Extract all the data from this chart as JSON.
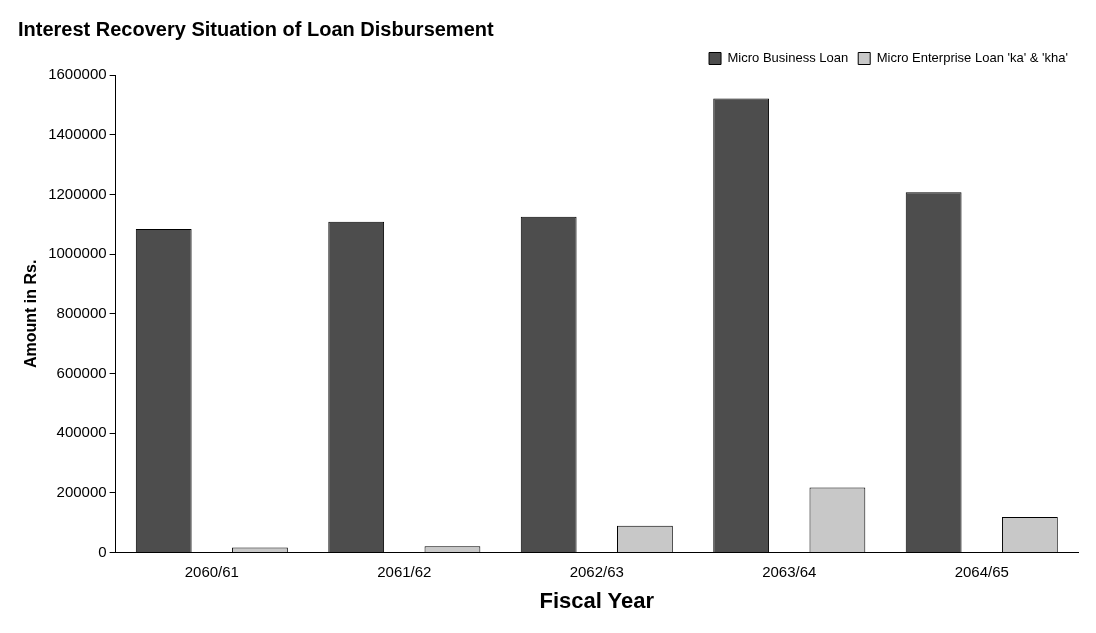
{
  "chart_data": {
    "type": "bar",
    "title": "Interest Recovery Situation of Loan Disbursement",
    "xlabel": "Fiscal Year",
    "ylabel": "Amount in Rs.",
    "categories": [
      "2060/61",
      "2061/62",
      "2062/63",
      "2063/64",
      "2064/65"
    ],
    "series": [
      {
        "name": "Micro Business Loan",
        "color": "#4d4d4d",
        "values": [
          1084000,
          1108000,
          1125000,
          1521000,
          1207000
        ]
      },
      {
        "name": "Micro Enterprise Loan 'ka' & 'kha'",
        "color": "#c8c8c8",
        "values": [
          17000,
          21000,
          90000,
          218000,
          119000
        ]
      }
    ],
    "ylim": [
      0,
      1600000
    ],
    "yticks": [
      0,
      200000,
      400000,
      600000,
      800000,
      1000000,
      1200000,
      1400000,
      1600000
    ],
    "grid": false,
    "legend": "top right"
  }
}
